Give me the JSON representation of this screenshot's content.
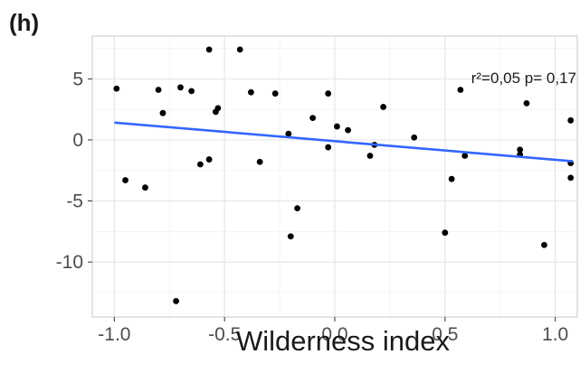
{
  "chart_data": {
    "type": "scatter",
    "panel_label": "(h)",
    "xlabel": "Wilderness index",
    "ylabel": "",
    "xlim": [
      -1.1,
      1.1
    ],
    "ylim": [
      -14.5,
      8.5
    ],
    "x_ticks": [
      -1.0,
      -0.5,
      0.0,
      0.5,
      1.0
    ],
    "x_tick_labels": [
      "-1.0",
      "-0.5",
      "0.0",
      "0.5",
      "1.0"
    ],
    "y_ticks": [
      5,
      0,
      -5,
      -10
    ],
    "y_tick_labels": [
      "5",
      "0",
      "-5",
      "-10"
    ],
    "grid": true,
    "annotation": "r²=0,05  p= 0,17",
    "points": [
      {
        "x": -0.99,
        "y": 4.2
      },
      {
        "x": -0.95,
        "y": -3.3
      },
      {
        "x": -0.86,
        "y": -3.9
      },
      {
        "x": -0.8,
        "y": 4.1
      },
      {
        "x": -0.78,
        "y": 2.2
      },
      {
        "x": -0.72,
        "y": -13.2
      },
      {
        "x": -0.7,
        "y": 4.3
      },
      {
        "x": -0.65,
        "y": 4.0
      },
      {
        "x": -0.61,
        "y": -2.0
      },
      {
        "x": -0.57,
        "y": 7.4
      },
      {
        "x": -0.57,
        "y": -1.6
      },
      {
        "x": -0.54,
        "y": 2.3
      },
      {
        "x": -0.53,
        "y": 2.6
      },
      {
        "x": -0.43,
        "y": 7.4
      },
      {
        "x": -0.38,
        "y": 3.9
      },
      {
        "x": -0.34,
        "y": -1.8
      },
      {
        "x": -0.27,
        "y": 3.8
      },
      {
        "x": -0.21,
        "y": 0.5
      },
      {
        "x": -0.2,
        "y": -7.9
      },
      {
        "x": -0.17,
        "y": -5.6
      },
      {
        "x": -0.1,
        "y": 1.8
      },
      {
        "x": -0.03,
        "y": 3.8
      },
      {
        "x": -0.03,
        "y": -0.6
      },
      {
        "x": 0.01,
        "y": 1.1
      },
      {
        "x": 0.06,
        "y": 0.8
      },
      {
        "x": 0.16,
        "y": -1.3
      },
      {
        "x": 0.18,
        "y": -0.4
      },
      {
        "x": 0.22,
        "y": 2.7
      },
      {
        "x": 0.36,
        "y": 0.2
      },
      {
        "x": 0.5,
        "y": -7.6
      },
      {
        "x": 0.53,
        "y": -3.2
      },
      {
        "x": 0.57,
        "y": 4.1
      },
      {
        "x": 0.59,
        "y": -1.3
      },
      {
        "x": 0.84,
        "y": -0.8
      },
      {
        "x": 0.84,
        "y": -1.2
      },
      {
        "x": 0.87,
        "y": 3.0
      },
      {
        "x": 0.95,
        "y": -8.6
      },
      {
        "x": 1.07,
        "y": 1.6
      },
      {
        "x": 1.07,
        "y": -1.9
      },
      {
        "x": 1.07,
        "y": -3.1
      }
    ],
    "regression_line": {
      "x": [
        -1.0,
        1.08
      ],
      "y": [
        1.42,
        -1.75
      ]
    },
    "colors": {
      "points": "#000000",
      "line": "#3366ff",
      "grid_major": "#e6e6e6",
      "grid_minor": "#f2f2f2",
      "panel_border": "#c8c8c8"
    }
  }
}
